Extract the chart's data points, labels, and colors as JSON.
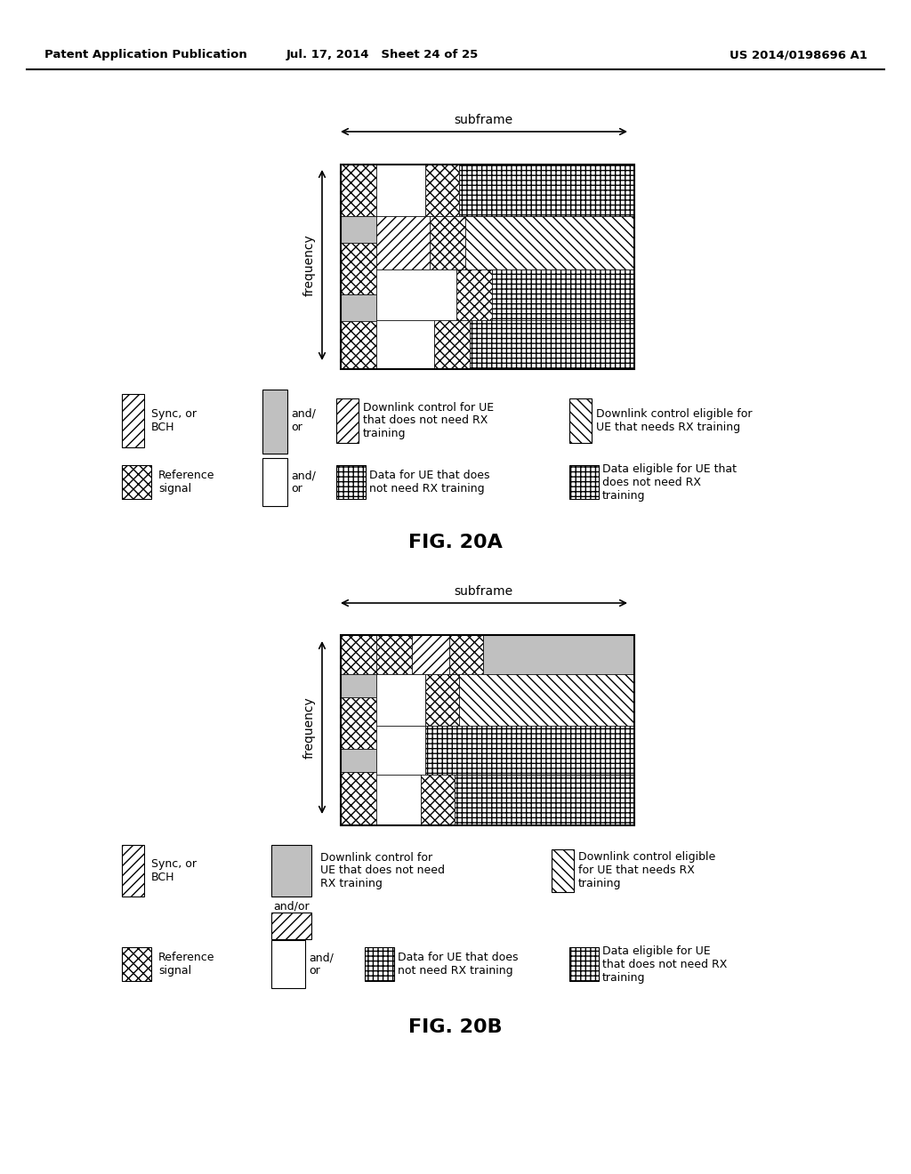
{
  "header_left": "Patent Application Publication",
  "header_mid": "Jul. 17, 2014   Sheet 24 of 25",
  "header_right": "US 2014/0198696 A1",
  "fig_a_label": "FIG. 20A",
  "fig_b_label": "FIG. 20B",
  "subframe_label": "subframe",
  "frequency_label": "frequency",
  "bg_color": "#ffffff"
}
